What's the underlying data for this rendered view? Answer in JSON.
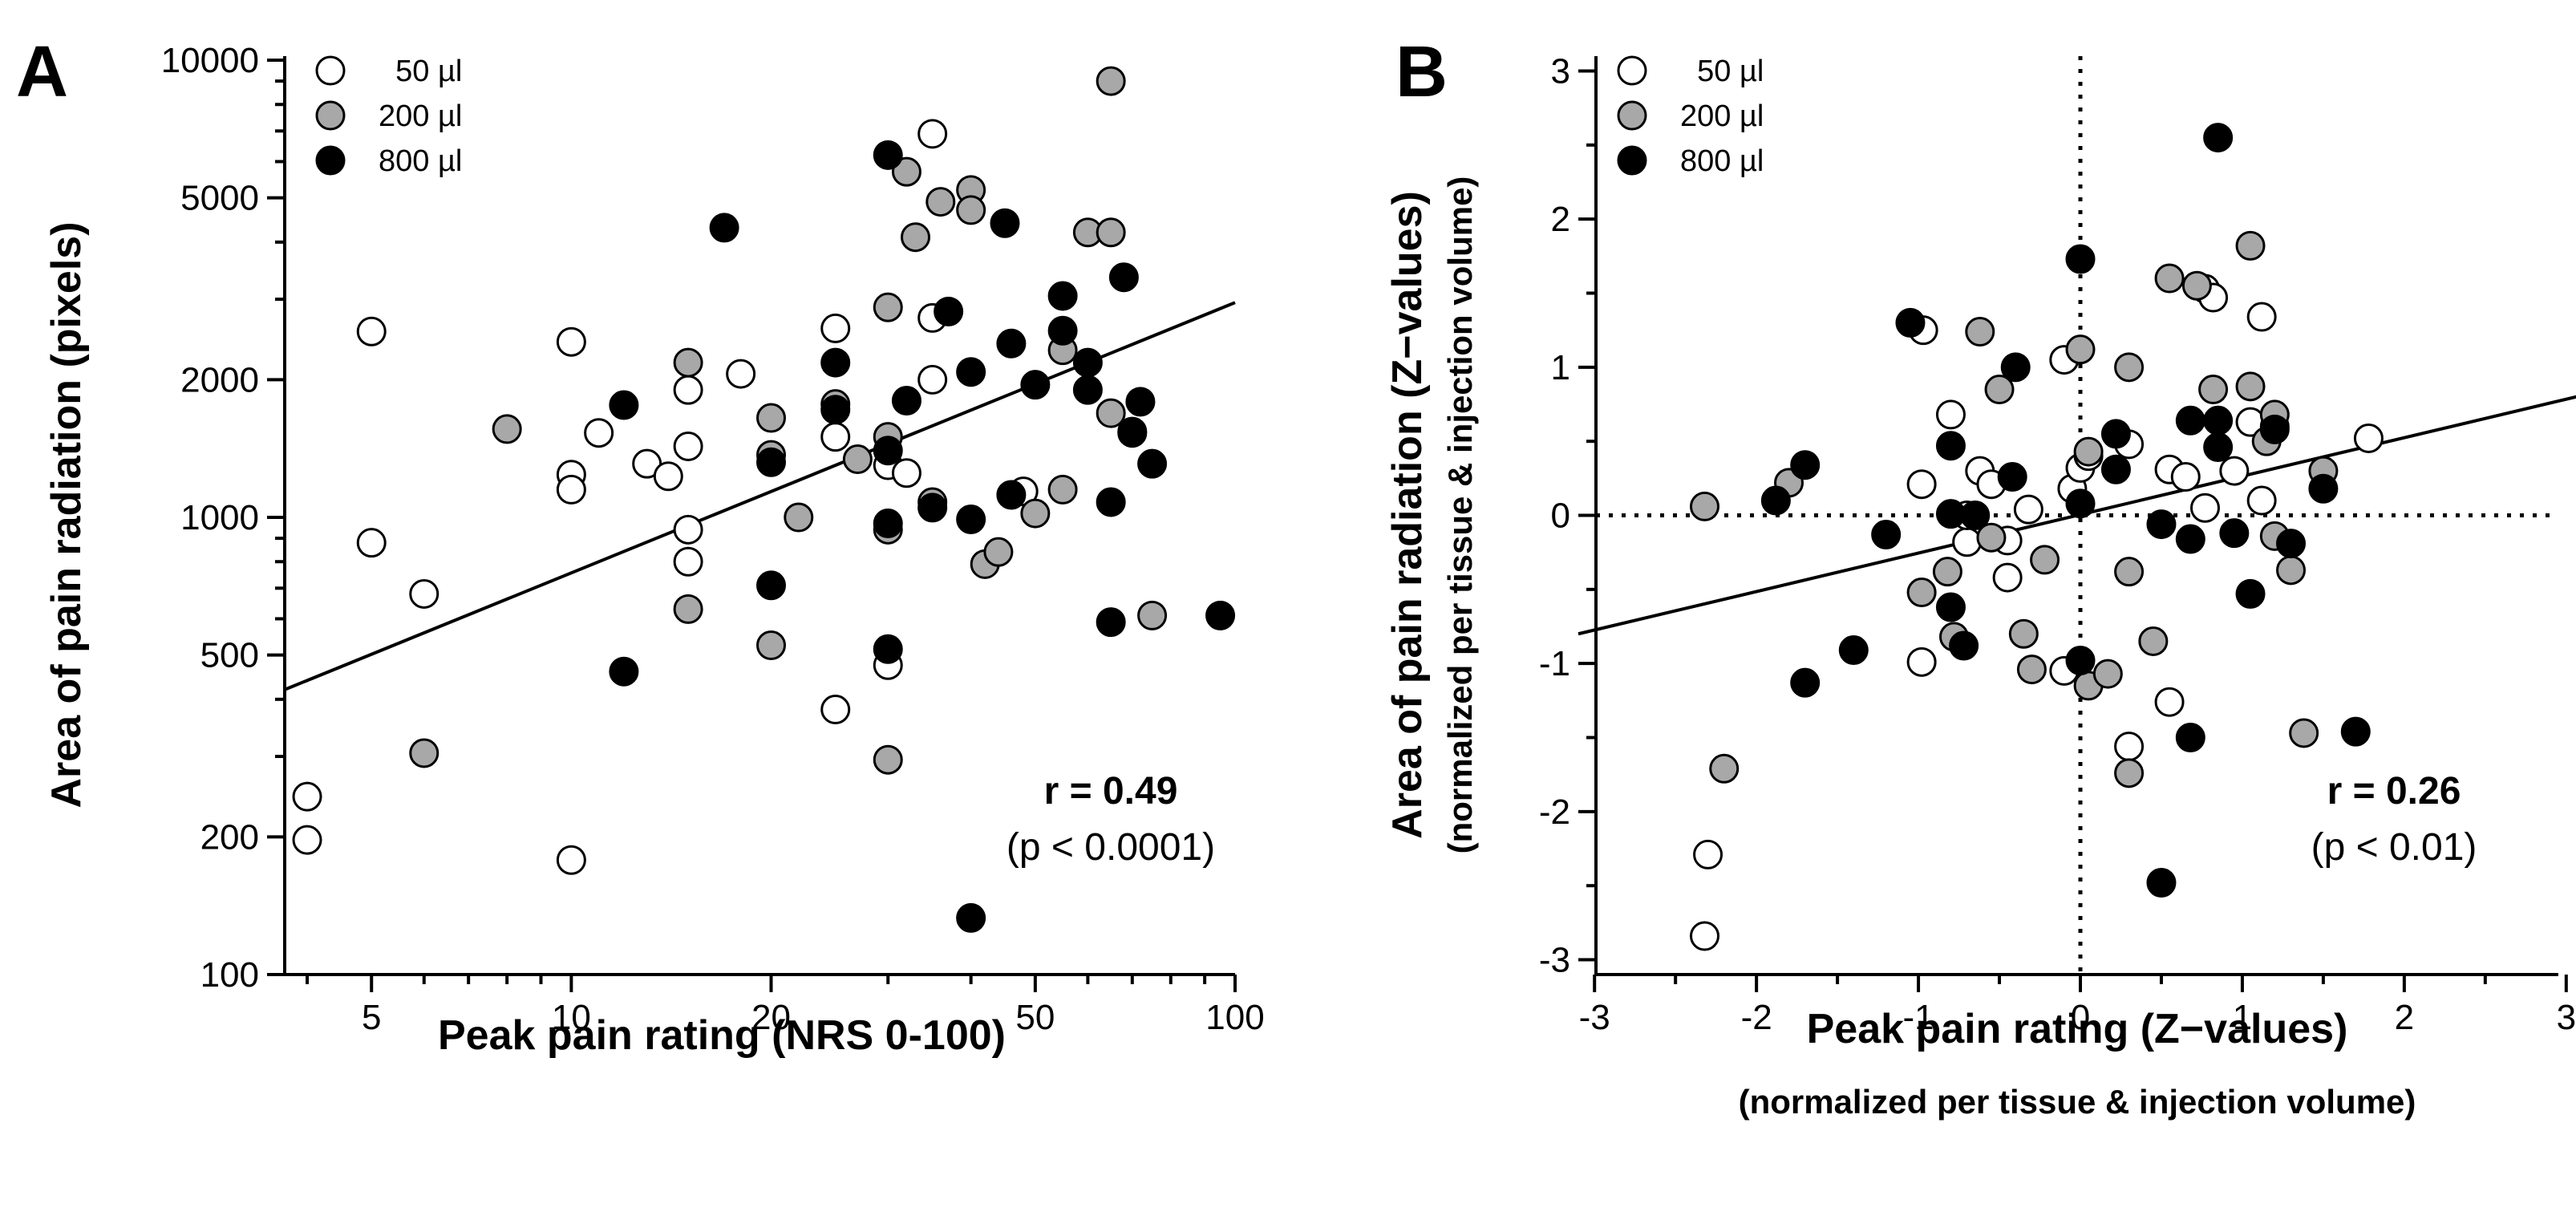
{
  "colors": {
    "v50": "#ffffff",
    "v200": "#a8a8a8",
    "v800": "#000000"
  },
  "chart_data": [
    {
      "type": "scatter",
      "panel": "A",
      "title": "",
      "xlabel": "Peak pain rating (NRS 0-100)",
      "ylabel": "Area of pain radiation (pixels)",
      "xscale": "log",
      "yscale": "log",
      "xlim": [
        3.7,
        100
      ],
      "ylim": [
        100,
        10000
      ],
      "xticks": [
        5,
        10,
        20,
        50,
        100
      ],
      "xtick_labels": [
        "5",
        "10",
        "20",
        "50",
        "100"
      ],
      "yticks": [
        100,
        200,
        500,
        1000,
        2000,
        5000,
        10000
      ],
      "ytick_labels": [
        "100",
        "200",
        "500",
        "1000",
        "2000",
        "5000",
        "10000"
      ],
      "legend_position": "top-left",
      "stat_r": "r = 0.49",
      "stat_p": "(p < 0.0001)",
      "fit_line": {
        "x": [
          3.7,
          100
        ],
        "y": [
          420,
          2950
        ]
      },
      "series": [
        {
          "name": "50 µl",
          "color_key": "v50",
          "points": [
            [
              4,
              245
            ],
            [
              4,
              197
            ],
            [
              5,
              2550
            ],
            [
              5,
              880
            ],
            [
              6,
              680
            ],
            [
              10,
              2420
            ],
            [
              10,
              1240
            ],
            [
              10,
              1150
            ],
            [
              10,
              178
            ],
            [
              11,
              1530
            ],
            [
              13,
              1310
            ],
            [
              14,
              1230
            ],
            [
              15,
              1900
            ],
            [
              15,
              1430
            ],
            [
              15,
              940
            ],
            [
              15,
              800
            ],
            [
              18,
              2060
            ],
            [
              25,
              2590
            ],
            [
              25,
              1500
            ],
            [
              25,
              380
            ],
            [
              30,
              1300
            ],
            [
              30,
              475
            ],
            [
              32,
              1250
            ],
            [
              35,
              6900
            ],
            [
              35,
              2730
            ],
            [
              35,
              2000
            ],
            [
              48,
              1140
            ]
          ]
        },
        {
          "name": "200 µl",
          "color_key": "v200",
          "points": [
            [
              8,
              1560
            ],
            [
              6,
              305
            ],
            [
              15,
              2180
            ],
            [
              15,
              630
            ],
            [
              20,
              1650
            ],
            [
              20,
              1370
            ],
            [
              20,
              525
            ],
            [
              22,
              1000
            ],
            [
              25,
              1770
            ],
            [
              27,
              1340
            ],
            [
              30,
              2880
            ],
            [
              30,
              1500
            ],
            [
              30,
              940
            ],
            [
              30,
              295
            ],
            [
              32,
              5700
            ],
            [
              33,
              4100
            ],
            [
              35,
              1080
            ],
            [
              36,
              4900
            ],
            [
              40,
              5200
            ],
            [
              40,
              4700
            ],
            [
              42,
              790
            ],
            [
              44,
              840
            ],
            [
              50,
              1020
            ],
            [
              55,
              2320
            ],
            [
              55,
              1150
            ],
            [
              60,
              4200
            ],
            [
              65,
              9000
            ],
            [
              65,
              4200
            ],
            [
              65,
              1690
            ],
            [
              70,
              1540
            ],
            [
              75,
              610
            ]
          ]
        },
        {
          "name": "800 µl",
          "color_key": "v800",
          "points": [
            [
              12,
              1760
            ],
            [
              12,
              460
            ],
            [
              17,
              4300
            ],
            [
              20,
              1320
            ],
            [
              20,
              710
            ],
            [
              25,
              2180
            ],
            [
              25,
              1720
            ],
            [
              30,
              6200
            ],
            [
              30,
              1400
            ],
            [
              30,
              970
            ],
            [
              30,
              515
            ],
            [
              32,
              1800
            ],
            [
              35,
              1050
            ],
            [
              37,
              2820
            ],
            [
              40,
              2080
            ],
            [
              40,
              990
            ],
            [
              40,
              133
            ],
            [
              45,
              4400
            ],
            [
              46,
              2400
            ],
            [
              46,
              1120
            ],
            [
              50,
              1950
            ],
            [
              55,
              3050
            ],
            [
              55,
              2560
            ],
            [
              60,
              2180
            ],
            [
              60,
              1900
            ],
            [
              65,
              1080
            ],
            [
              65,
              590
            ],
            [
              68,
              3350
            ],
            [
              70,
              1530
            ],
            [
              72,
              1790
            ],
            [
              75,
              1310
            ],
            [
              95,
              610
            ]
          ]
        }
      ]
    },
    {
      "type": "scatter",
      "panel": "B",
      "title": "",
      "xlabel": "Peak pain rating (Z−values)",
      "xlabel_sub": "(normalized per tissue & injection volume)",
      "ylabel": "Area of pain radiation (Z−values)",
      "ylabel_sub": "(normalized per tissue & injection volume)",
      "xlim": [
        -3.1,
        3.1
      ],
      "ylim": [
        -3.1,
        3.1
      ],
      "xticks": [
        -3,
        -2,
        -1,
        0,
        1,
        2,
        3
      ],
      "xtick_labels": [
        "-3",
        "-2",
        "-1",
        "0",
        "1",
        "2",
        "3"
      ],
      "yticks": [
        -3,
        -2,
        -1,
        0,
        1,
        2,
        3
      ],
      "ytick_labels": [
        "-3",
        "-2",
        "-1",
        "0",
        "1",
        "2",
        "3"
      ],
      "legend_position": "top-left",
      "stat_r": "r = 0.26",
      "stat_p": "(p < 0.01)",
      "fit_line": {
        "x": [
          -3.1,
          3.1
        ],
        "y": [
          -0.8,
          0.81
        ]
      },
      "series": [
        {
          "name": "50 µl",
          "color_key": "v50",
          "points": [
            [
              -2.3,
              -2.29
            ],
            [
              -2.32,
              -2.84
            ],
            [
              -0.97,
              1.25
            ],
            [
              -0.98,
              0.21
            ],
            [
              -0.98,
              -0.99
            ],
            [
              -0.8,
              0.68
            ],
            [
              -0.7,
              -0.18
            ],
            [
              -0.62,
              0.3
            ],
            [
              -0.55,
              0.21
            ],
            [
              -0.45,
              -0.42
            ],
            [
              -0.45,
              -0.17
            ],
            [
              -0.1,
              1.05
            ],
            [
              -0.05,
              0.18
            ],
            [
              0.0,
              0.32
            ],
            [
              0.05,
              0.4
            ],
            [
              -0.1,
              -1.05
            ],
            [
              0.3,
              0.48
            ],
            [
              0.3,
              -1.56
            ],
            [
              0.55,
              0.31
            ],
            [
              0.55,
              -1.26
            ],
            [
              0.65,
              0.26
            ],
            [
              0.77,
              0.05
            ],
            [
              0.77,
              1.53
            ],
            [
              0.82,
              1.47
            ],
            [
              0.95,
              0.3
            ],
            [
              1.05,
              0.63
            ],
            [
              1.12,
              1.34
            ],
            [
              1.12,
              0.1
            ],
            [
              1.2,
              0.6
            ],
            [
              1.78,
              0.52
            ],
            [
              -0.7,
              0.0
            ],
            [
              -0.32,
              0.04
            ]
          ]
        },
        {
          "name": "200 µl",
          "color_key": "v200",
          "points": [
            [
              -2.32,
              0.06
            ],
            [
              -2.2,
              -1.71
            ],
            [
              -1.8,
              0.22
            ],
            [
              -0.98,
              -0.52
            ],
            [
              -0.82,
              -0.38
            ],
            [
              -0.78,
              -0.82
            ],
            [
              -0.62,
              1.24
            ],
            [
              -0.5,
              0.85
            ],
            [
              -0.35,
              -0.8
            ],
            [
              -0.3,
              -1.04
            ],
            [
              -0.22,
              -0.3
            ],
            [
              0.0,
              1.12
            ],
            [
              0.05,
              0.43
            ],
            [
              0.05,
              -1.15
            ],
            [
              0.17,
              -1.07
            ],
            [
              0.3,
              1.0
            ],
            [
              0.3,
              -0.38
            ],
            [
              0.3,
              -1.74
            ],
            [
              0.45,
              -0.85
            ],
            [
              0.55,
              1.6
            ],
            [
              0.72,
              1.55
            ],
            [
              0.82,
              0.85
            ],
            [
              1.05,
              1.82
            ],
            [
              1.05,
              0.87
            ],
            [
              1.15,
              0.5
            ],
            [
              1.2,
              -0.14
            ],
            [
              1.2,
              0.68
            ],
            [
              1.3,
              -0.37
            ],
            [
              1.38,
              -1.47
            ],
            [
              1.5,
              0.3
            ],
            [
              -0.55,
              -0.15
            ]
          ]
        },
        {
          "name": "800 µl",
          "color_key": "v800",
          "points": [
            [
              -1.88,
              0.1
            ],
            [
              -1.7,
              0.34
            ],
            [
              -1.7,
              -1.13
            ],
            [
              -1.4,
              -0.91
            ],
            [
              -1.2,
              -0.13
            ],
            [
              -1.05,
              1.3
            ],
            [
              -0.8,
              0.47
            ],
            [
              -0.8,
              0.01
            ],
            [
              -0.8,
              -0.62
            ],
            [
              -0.72,
              -0.88
            ],
            [
              -0.65,
              0.0
            ],
            [
              -0.42,
              0.26
            ],
            [
              -0.4,
              1.0
            ],
            [
              0.0,
              1.73
            ],
            [
              0.0,
              0.08
            ],
            [
              0.0,
              -0.98
            ],
            [
              0.22,
              0.55
            ],
            [
              0.22,
              0.31
            ],
            [
              0.5,
              -0.06
            ],
            [
              0.5,
              -2.48
            ],
            [
              0.68,
              0.64
            ],
            [
              0.68,
              -0.16
            ],
            [
              0.68,
              -1.5
            ],
            [
              0.85,
              2.55
            ],
            [
              0.85,
              0.64
            ],
            [
              0.85,
              0.46
            ],
            [
              0.95,
              -0.12
            ],
            [
              1.05,
              -0.53
            ],
            [
              1.2,
              0.58
            ],
            [
              1.3,
              -0.19
            ],
            [
              1.5,
              0.18
            ],
            [
              1.7,
              -1.46
            ]
          ]
        }
      ]
    }
  ]
}
